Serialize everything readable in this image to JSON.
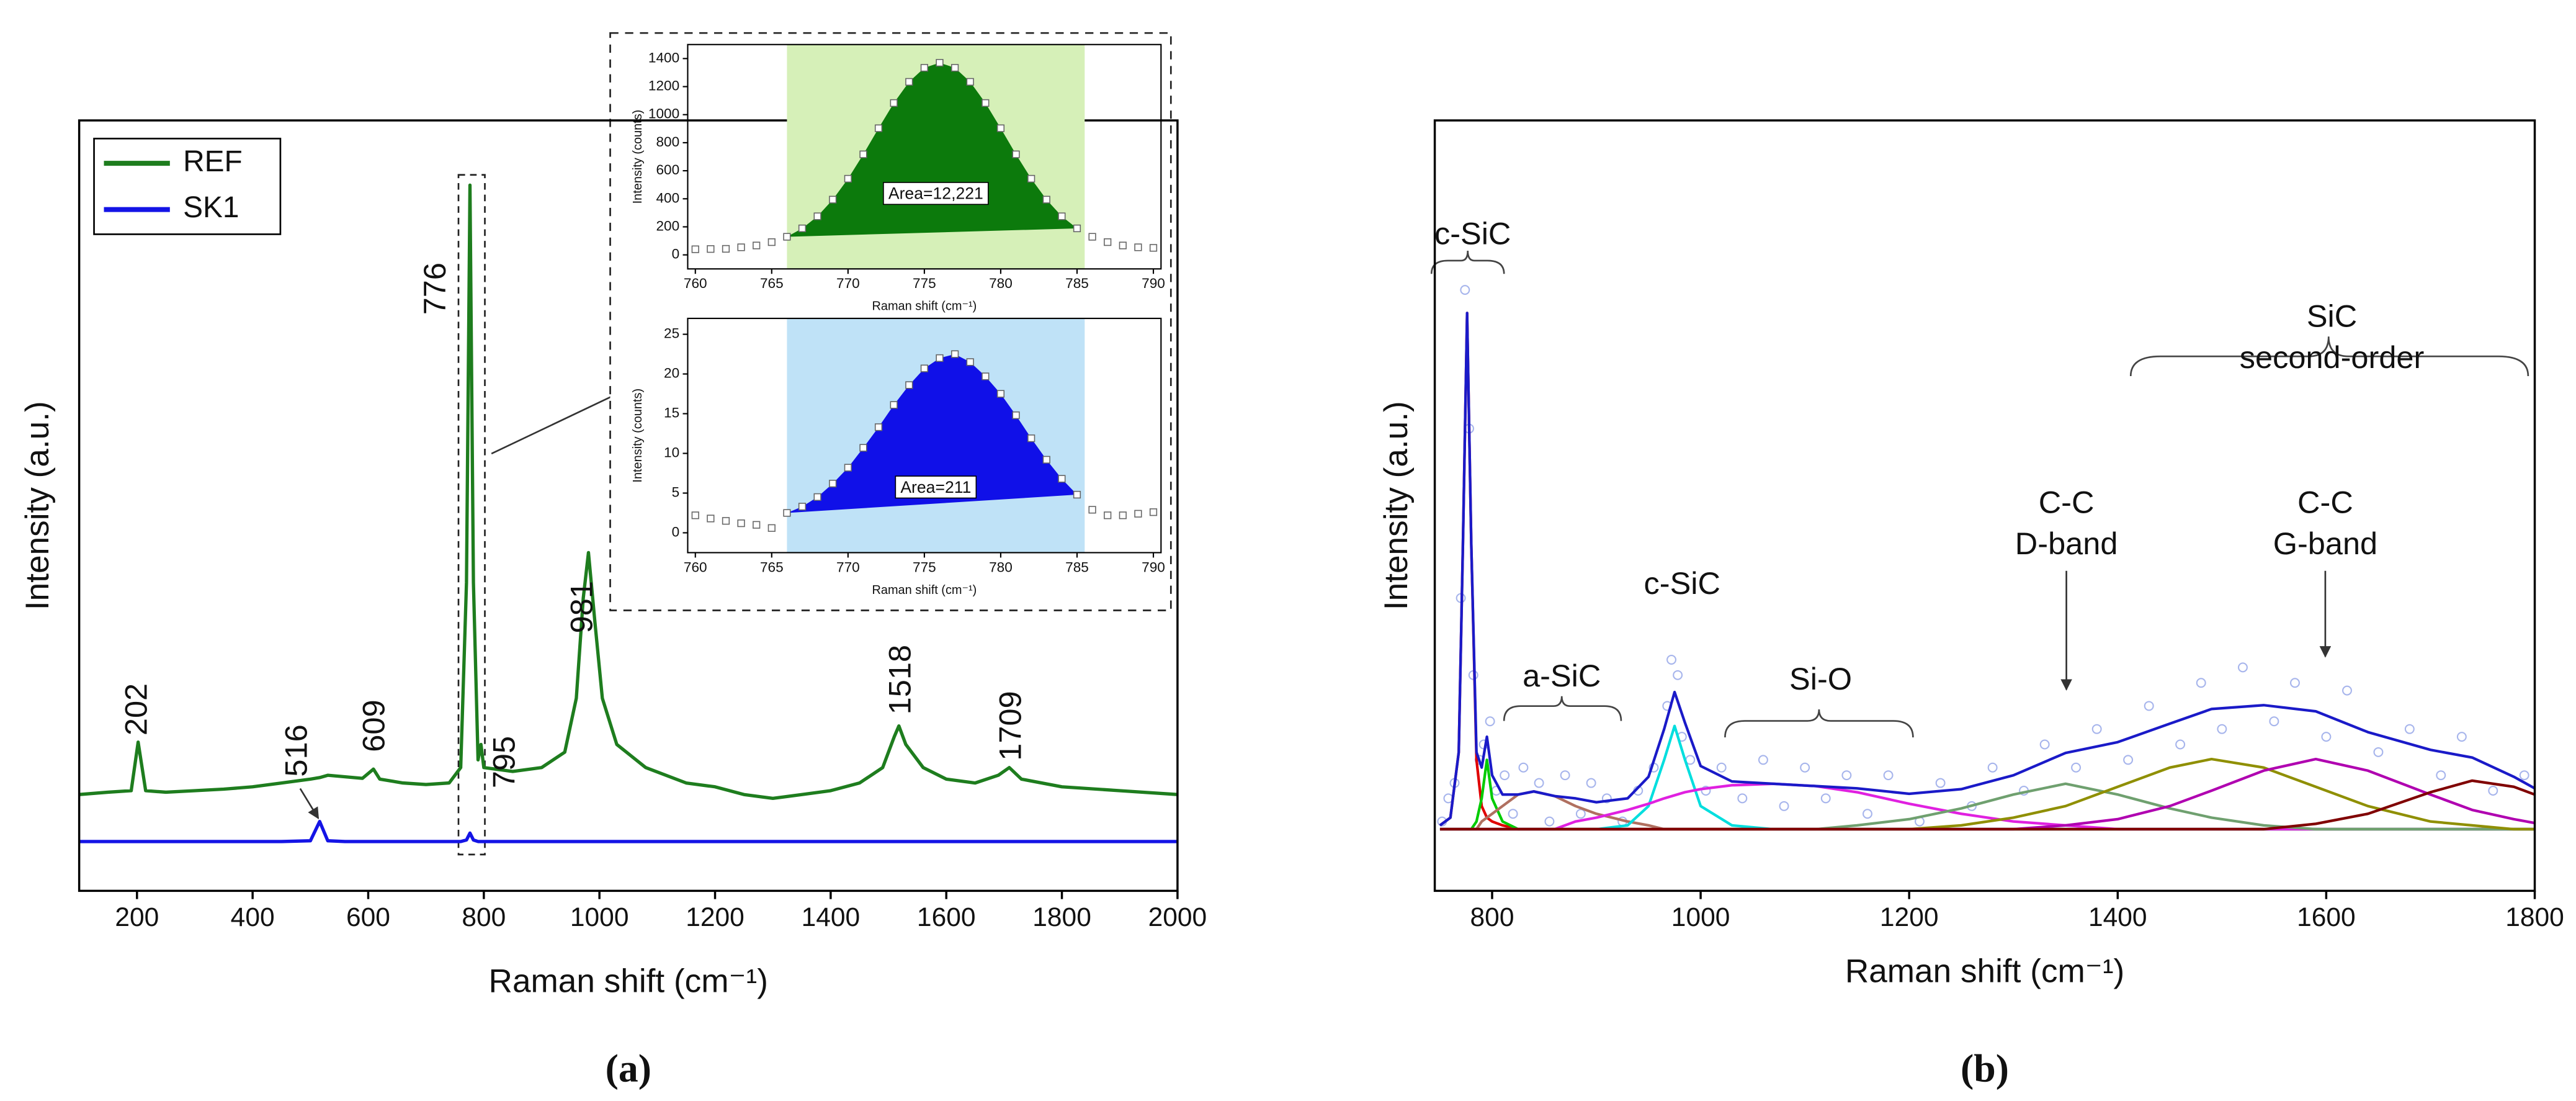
{
  "chart_data": [
    {
      "type": "line",
      "caption": "(a)",
      "x_label": "Raman shift (cm⁻¹)",
      "y_label": "Intensity (a.u.)",
      "xlim": [
        100,
        2000
      ],
      "ylim": [
        0,
        100
      ],
      "xticks": [
        200,
        400,
        600,
        800,
        1000,
        1200,
        1400,
        1600,
        1800,
        2000
      ],
      "legend": "upper left",
      "x": [
        100,
        150,
        190,
        202,
        215,
        250,
        300,
        350,
        400,
        450,
        500,
        516,
        530,
        560,
        590,
        609,
        620,
        660,
        700,
        740,
        760,
        770,
        776,
        782,
        790,
        795,
        800,
        850,
        900,
        940,
        960,
        972,
        981,
        992,
        1005,
        1030,
        1080,
        1150,
        1200,
        1250,
        1300,
        1350,
        1400,
        1450,
        1490,
        1510,
        1518,
        1530,
        1560,
        1600,
        1650,
        1690,
        1709,
        1730,
        1800,
        1900,
        2000
      ],
      "series": [
        {
          "name": "REF",
          "color": "#1e7d1e",
          "values": [
            12.5,
            12.8,
            13,
            19.3,
            13,
            12.8,
            13,
            13.2,
            13.5,
            14,
            14.5,
            14.7,
            15,
            14.8,
            14.6,
            15.8,
            14.5,
            14,
            13.8,
            14,
            16,
            40,
            91.6,
            40,
            17,
            19,
            16,
            15.5,
            16,
            18,
            25,
            38,
            43.9,
            35,
            25,
            19,
            16,
            14,
            13.5,
            12.5,
            12,
            12.5,
            13,
            14,
            16,
            20,
            21.4,
            19,
            16,
            14.5,
            14,
            15,
            16,
            14.5,
            13.5,
            13,
            12.5
          ]
        },
        {
          "name": "SK1",
          "color": "#1414e6",
          "values": [
            6.4,
            6.4,
            6.4,
            6.4,
            6.4,
            6.4,
            6.4,
            6.4,
            6.4,
            6.4,
            6.5,
            9,
            6.5,
            6.4,
            6.4,
            6.4,
            6.4,
            6.4,
            6.4,
            6.4,
            6.4,
            6.6,
            7.5,
            6.6,
            6.4,
            6.4,
            6.4,
            6.4,
            6.4,
            6.4,
            6.4,
            6.4,
            6.4,
            6.4,
            6.4,
            6.4,
            6.4,
            6.4,
            6.4,
            6.4,
            6.4,
            6.4,
            6.4,
            6.4,
            6.4,
            6.4,
            6.4,
            6.4,
            6.4,
            6.4,
            6.4,
            6.4,
            6.4,
            6.4,
            6.4,
            6.4,
            6.4
          ]
        }
      ],
      "annotations": [
        "202",
        "516",
        "609",
        "776",
        "795",
        "981",
        "1518",
        "1709"
      ]
    },
    {
      "type": "scatter",
      "x_label": "Raman shift (cm⁻¹)",
      "y_label": "Intensity (counts)",
      "xlim": [
        759.5,
        790.5
      ],
      "ylim": [
        -100,
        1500
      ],
      "xticks": [
        760,
        765,
        770,
        775,
        780,
        785,
        790
      ],
      "yticks": [
        0,
        200,
        400,
        600,
        800,
        1000,
        1200,
        1400
      ],
      "highlight": [
        766,
        785.5
      ],
      "highlight_color": "#d6f0b8",
      "x": [
        760,
        761,
        762,
        763,
        764,
        765,
        766,
        767,
        768,
        769,
        770,
        771,
        772,
        773,
        774,
        775,
        776,
        777,
        778,
        779,
        780,
        781,
        782,
        783,
        784,
        785,
        786,
        787,
        788,
        789,
        790
      ],
      "series": [
        {
          "marker": "square",
          "color": "#666666",
          "fill_color": "#0c7a0c",
          "values": [
            40,
            42,
            43,
            54,
            67,
            91,
            129,
            189,
            275,
            394,
            543,
            717,
            903,
            1083,
            1234,
            1334,
            1370,
            1334,
            1234,
            1083,
            903,
            717,
            543,
            394,
            275,
            189,
            129,
            91,
            67,
            54,
            50
          ]
        }
      ],
      "annotation": "Area=12,221"
    },
    {
      "type": "scatter",
      "x_label": "Raman shift (cm⁻¹)",
      "y_label": "Intensity (counts)",
      "xlim": [
        759.5,
        790.5
      ],
      "ylim": [
        -2.5,
        27
      ],
      "xticks": [
        760,
        765,
        770,
        775,
        780,
        785,
        790
      ],
      "yticks": [
        0,
        5,
        10,
        15,
        20,
        25
      ],
      "highlight": [
        766,
        785.5
      ],
      "highlight_color": "#bfe2f7",
      "x": [
        760,
        761,
        762,
        763,
        764,
        765,
        766,
        767,
        768,
        769,
        770,
        771,
        772,
        773,
        774,
        775,
        776,
        777,
        778,
        779,
        780,
        781,
        782,
        783,
        784,
        785,
        786,
        787,
        788,
        789,
        790
      ],
      "series": [
        {
          "marker": "square",
          "color": "#666666",
          "fill_color": "#1010e8",
          "values": [
            2.2,
            1.8,
            1.5,
            1.2,
            1.0,
            0.6,
            2.5,
            3.3,
            4.5,
            6.2,
            8.2,
            10.7,
            13.3,
            16.1,
            18.6,
            20.7,
            22.0,
            22.5,
            21.5,
            19.7,
            17.5,
            14.8,
            11.9,
            9.2,
            6.8,
            4.8,
            2.9,
            2.2,
            2.2,
            2.4,
            2.6
          ]
        }
      ],
      "annotation": "Area=211"
    },
    {
      "type": "line",
      "caption": "(b)",
      "x_label": "Raman shift (cm⁻¹)",
      "y_label": "Intensity (a.u.)",
      "xlim": [
        745,
        1800
      ],
      "ylim": [
        0,
        100
      ],
      "xticks": [
        800,
        1000,
        1200,
        1400,
        1600,
        1800
      ],
      "x": [
        750,
        760,
        768,
        772,
        776,
        780,
        785,
        790,
        795,
        800,
        810,
        825,
        840,
        860,
        880,
        900,
        930,
        950,
        965,
        975,
        985,
        1000,
        1030,
        1070,
        1110,
        1150,
        1200,
        1250,
        1300,
        1350,
        1400,
        1450,
        1490,
        1540,
        1590,
        1640,
        1700,
        1740,
        1780,
        1800
      ],
      "series": [
        {
          "type": "scatter",
          "color": "#8a9ce6",
          "x": [
            752,
            758,
            764,
            770,
            774,
            778,
            782,
            788,
            792,
            798,
            804,
            812,
            820,
            830,
            845,
            855,
            870,
            885,
            895,
            910,
            925,
            940,
            955,
            968,
            972,
            978,
            982,
            990,
            1005,
            1020,
            1040,
            1060,
            1080,
            1100,
            1120,
            1140,
            1160,
            1180,
            1210,
            1230,
            1260,
            1280,
            1310,
            1330,
            1360,
            1380,
            1410,
            1430,
            1460,
            1480,
            1500,
            1520,
            1550,
            1570,
            1600,
            1620,
            1650,
            1680,
            1710,
            1730,
            1760,
            1790
          ],
          "values": [
            9,
            12,
            14,
            38,
            78,
            60,
            28,
            17,
            19,
            22,
            13,
            15,
            10,
            16,
            14,
            9,
            15,
            10,
            14,
            12,
            9,
            13,
            16,
            24,
            30,
            28,
            20,
            17,
            13,
            16,
            12,
            17,
            11,
            16,
            12,
            15,
            10,
            15,
            9,
            14,
            11,
            16,
            13,
            19,
            16,
            21,
            17,
            24,
            19,
            27,
            21,
            29,
            22,
            27,
            20,
            26,
            18,
            21,
            15,
            20,
            13,
            15
          ]
        },
        {
          "color": "#e00000",
          "values": [
            8.5,
            9.5,
            18,
            45,
            75,
            45,
            17,
            11,
            9.5,
            9,
            8.5,
            8,
            8,
            8,
            8,
            8,
            8,
            8,
            8,
            8,
            8,
            8,
            8,
            8,
            8,
            8,
            8,
            8,
            8,
            8,
            8,
            8,
            8,
            8,
            8,
            8,
            8,
            8,
            8,
            8
          ]
        },
        {
          "color": "#00cc00",
          "values": [
            8,
            8,
            8,
            8,
            8,
            8,
            9,
            12,
            17,
            12,
            9,
            8,
            8,
            8,
            8,
            8,
            8,
            8,
            8,
            8,
            8,
            8,
            8,
            8,
            8,
            8,
            8,
            8,
            8,
            8,
            8,
            8,
            8,
            8,
            8,
            8,
            8,
            8,
            8,
            8
          ]
        },
        {
          "color": "#b07060",
          "values": [
            8,
            8,
            8,
            8,
            8,
            8,
            8,
            9,
            9.5,
            10,
            11,
            12.5,
            12.9,
            12.3,
            11,
            10,
            9,
            8.5,
            8,
            8,
            8,
            8,
            8,
            8,
            8,
            8,
            8,
            8,
            8,
            8,
            8,
            8,
            8,
            8,
            8,
            8,
            8,
            8,
            8,
            8
          ]
        },
        {
          "color": "#00dede",
          "values": [
            8,
            8,
            8,
            8,
            8,
            8,
            8,
            8,
            8,
            8,
            8,
            8,
            8,
            8,
            8,
            8,
            8.5,
            11,
            17,
            21.4,
            17,
            11,
            8.5,
            8,
            8,
            8,
            8,
            8,
            8,
            8,
            8,
            8,
            8,
            8,
            8,
            8,
            8,
            8,
            8,
            8
          ]
        },
        {
          "color": "#e020e0",
          "values": [
            8,
            8,
            8,
            8,
            8,
            8,
            8,
            8,
            8,
            8,
            8,
            8,
            8,
            8,
            9,
            9.5,
            10.5,
            11.3,
            12,
            12.4,
            12.8,
            13.2,
            13.7,
            13.9,
            13.6,
            12.8,
            11.3,
            10,
            9,
            8.5,
            8,
            8,
            8,
            8,
            8,
            8,
            8,
            8,
            8,
            8
          ]
        },
        {
          "color": "#6fa06f",
          "values": [
            8,
            8,
            8,
            8,
            8,
            8,
            8,
            8,
            8,
            8,
            8,
            8,
            8,
            8,
            8,
            8,
            8,
            8,
            8,
            8,
            8,
            8,
            8,
            8,
            8,
            8.5,
            9.3,
            10.7,
            12.5,
            13.9,
            12.5,
            10.7,
            9.5,
            8.5,
            8,
            8,
            8,
            8,
            8,
            8
          ]
        },
        {
          "color": "#8f8f00",
          "values": [
            8,
            8,
            8,
            8,
            8,
            8,
            8,
            8,
            8,
            8,
            8,
            8,
            8,
            8,
            8,
            8,
            8,
            8,
            8,
            8,
            8,
            8,
            8,
            8,
            8,
            8,
            8,
            8.5,
            9.5,
            11,
            13.5,
            16,
            17.1,
            16,
            13.5,
            11,
            9,
            8.5,
            8,
            8
          ]
        },
        {
          "color": "#b000b0",
          "values": [
            8,
            8,
            8,
            8,
            8,
            8,
            8,
            8,
            8,
            8,
            8,
            8,
            8,
            8,
            8,
            8,
            8,
            8,
            8,
            8,
            8,
            8,
            8,
            8,
            8,
            8,
            8,
            8,
            8,
            8.5,
            9.3,
            11,
            13,
            15.6,
            17.1,
            15.6,
            12.5,
            10.5,
            9.3,
            8.8
          ]
        },
        {
          "color": "#800000",
          "values": [
            8,
            8,
            8,
            8,
            8,
            8,
            8,
            8,
            8,
            8,
            8,
            8,
            8,
            8,
            8,
            8,
            8,
            8,
            8,
            8,
            8,
            8,
            8,
            8,
            8,
            8,
            8,
            8,
            8,
            8,
            8,
            8,
            8,
            8,
            8.7,
            10,
            12.8,
            14.3,
            13.5,
            12.5
          ]
        },
        {
          "color": "#1a1ac8",
          "values": [
            8.5,
            9.5,
            18,
            45,
            75,
            45,
            18,
            16,
            20,
            15,
            12.5,
            12.5,
            12.9,
            12.3,
            12,
            11.5,
            12,
            14.8,
            21,
            25.8,
            21.8,
            16.2,
            14.2,
            13.9,
            13.6,
            13.3,
            12.6,
            13.2,
            15,
            17.9,
            19.3,
            21.7,
            23.6,
            24.1,
            23.3,
            20.6,
            18.3,
            17.3,
            14.8,
            13.3
          ]
        }
      ],
      "annotations": [
        [
          "c-SiC"
        ],
        [
          "a-SiC"
        ],
        [
          "c-SiC"
        ],
        [
          "Si-O"
        ],
        [
          "C-C",
          "D-band"
        ],
        [
          "SiC",
          "second-order"
        ],
        [
          "C-C",
          "G-band"
        ]
      ]
    }
  ]
}
